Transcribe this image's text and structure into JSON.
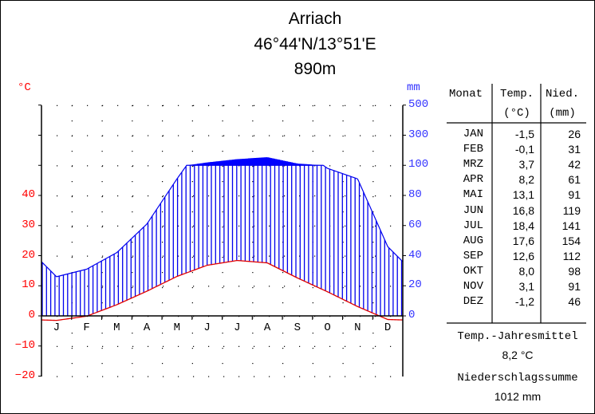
{
  "header": {
    "station": "Arriach",
    "coordinates": "46°44'N/13°51'E",
    "elevation": "890m"
  },
  "axes": {
    "left_unit": "°C",
    "right_unit": "mm",
    "left_ticks": [
      "40",
      "30",
      "20",
      "10",
      "0",
      "−10",
      "−20"
    ],
    "right_ticks": [
      "500",
      "300",
      "100",
      "80",
      "60",
      "40",
      "20",
      "0"
    ],
    "month_letters": [
      "J",
      "F",
      "M",
      "A",
      "M",
      "J",
      "J",
      "A",
      "S",
      "O",
      "N",
      "D"
    ]
  },
  "table": {
    "col_month": "Monat",
    "col_temp": "Temp.",
    "col_temp_unit": "(°C)",
    "col_precip": "Nied.",
    "col_precip_unit": "(mm)",
    "rows": [
      {
        "month": "JAN",
        "temp": "-1,5",
        "precip": "26"
      },
      {
        "month": "FEB",
        "temp": "-0,1",
        "precip": "31"
      },
      {
        "month": "MRZ",
        "temp": "3,7",
        "precip": "42"
      },
      {
        "month": "APR",
        "temp": "8,2",
        "precip": "61"
      },
      {
        "month": "MAI",
        "temp": "13,1",
        "precip": "91"
      },
      {
        "month": "JUN",
        "temp": "16,8",
        "precip": "119"
      },
      {
        "month": "JUL",
        "temp": "18,4",
        "precip": "141"
      },
      {
        "month": "AUG",
        "temp": "17,6",
        "precip": "154"
      },
      {
        "month": "SEP",
        "temp": "12,6",
        "precip": "112"
      },
      {
        "month": "OKT",
        "temp": "8,0",
        "precip": "98"
      },
      {
        "month": "NOV",
        "temp": "3,1",
        "precip": "91"
      },
      {
        "month": "DEZ",
        "temp": "-1,2",
        "precip": "46"
      }
    ]
  },
  "summary": {
    "temp_label": "Temp.-Jahresmittel",
    "temp_value": "8,2 °C",
    "precip_label": "Niederschlagssumme",
    "precip_value": "1012 mm"
  },
  "colors": {
    "temperature": "#e00000",
    "precipitation": "#0000ee",
    "left_axis_labels": "#ff0000",
    "right_axis_labels": "#3333ff",
    "humid_fill": "#0000ee",
    "perhumid_fill": "#0000ff"
  },
  "chart_data": {
    "type": "line",
    "title": "Arriach 46°44'N/13°51'E 890m",
    "subtitle": "Klimadiagramm nach Walter/Lieth",
    "categories": [
      "JAN",
      "FEB",
      "MRZ",
      "APR",
      "MAI",
      "JUN",
      "JUL",
      "AUG",
      "SEP",
      "OKT",
      "NOV",
      "DEZ"
    ],
    "series": [
      {
        "name": "Temp. (°C)",
        "axis": "left",
        "values": [
          -1.5,
          -0.1,
          3.7,
          8.2,
          13.1,
          16.8,
          18.4,
          17.6,
          12.6,
          8.0,
          3.1,
          -1.2
        ]
      },
      {
        "name": "Nied. (mm)",
        "axis": "right",
        "values": [
          26,
          31,
          42,
          61,
          91,
          119,
          141,
          154,
          112,
          98,
          91,
          46
        ]
      }
    ],
    "xlabel": "",
    "ylabel_left": "°C",
    "ylabel_right": "mm",
    "ylim_left": [
      -20,
      40
    ],
    "ylim_right": [
      0,
      500
    ],
    "right_axis_note": "0-100 mm at 20 mm per 10 °C; above 100 mm compressed (100, 300, 500)",
    "annual_mean_temp": 8.2,
    "annual_precip_sum": 1012,
    "grid": "dotted",
    "legend": "table on right"
  }
}
